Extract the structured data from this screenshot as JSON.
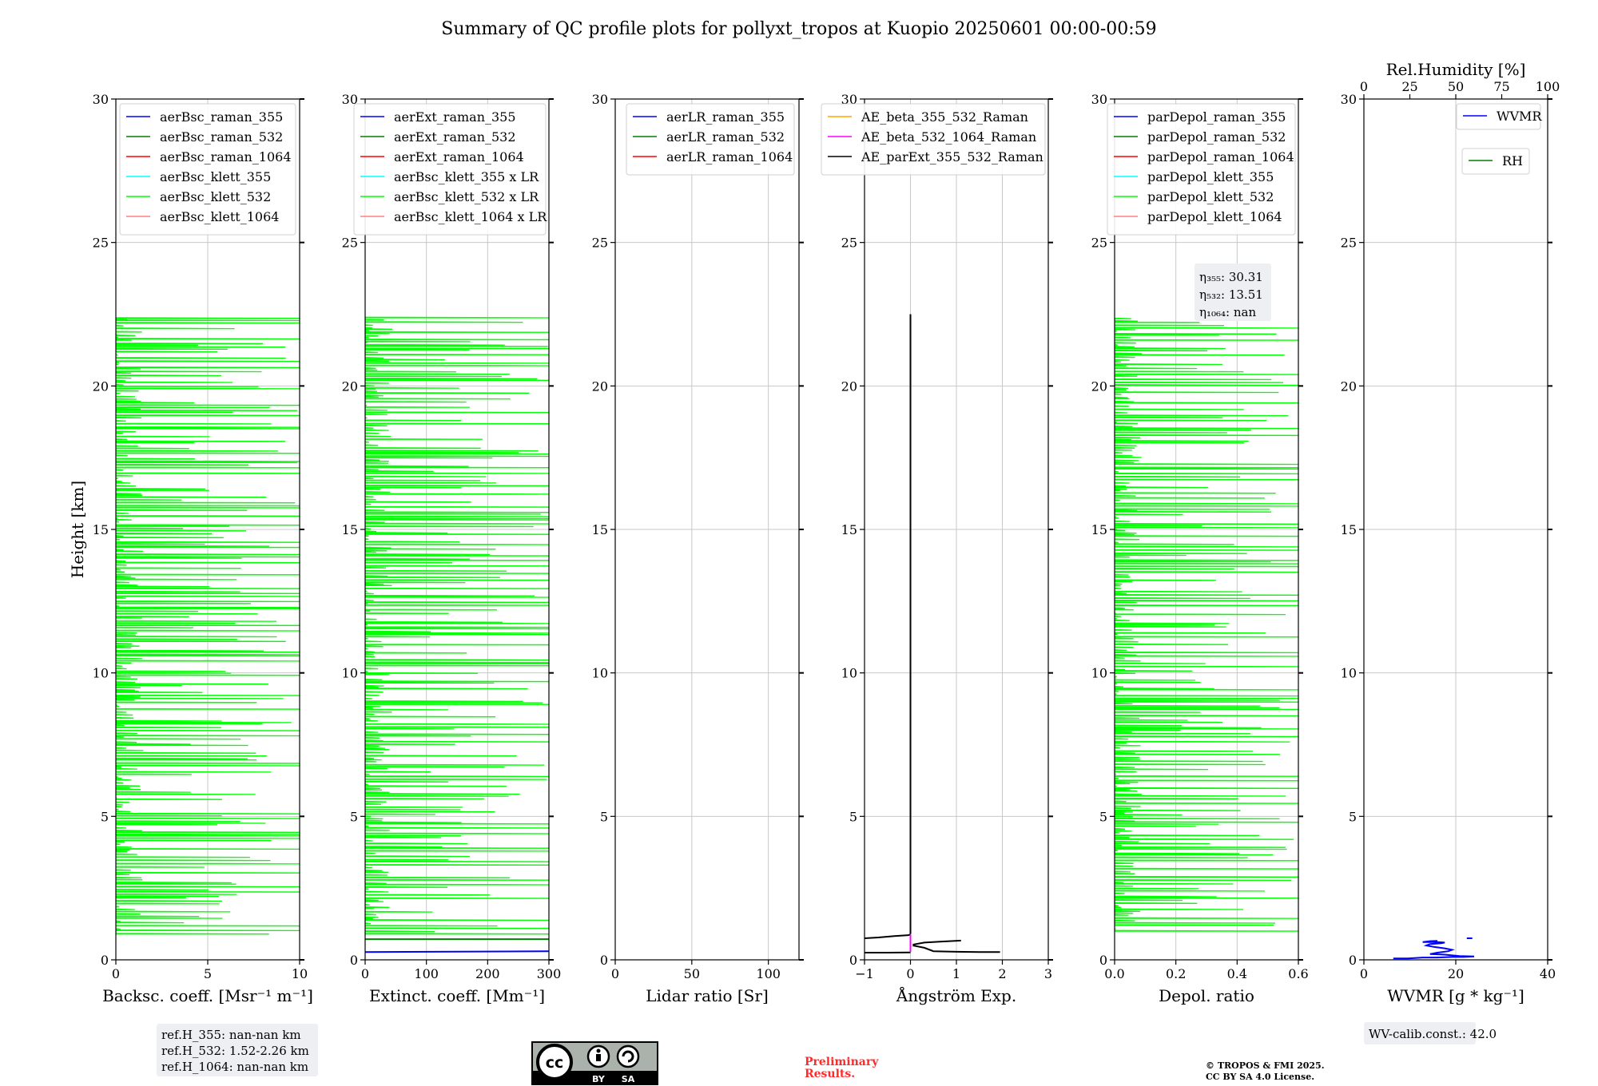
{
  "figure": {
    "title": "Summary of QC profile plots for pollyxt_tropos at Kuopio 20250601 00:00-00:59"
  },
  "footer": {
    "ref_heights": [
      "ref.H_355: nan-nan km",
      "ref.H_532: 1.52-2.26 km",
      "ref.H_1064: nan-nan km"
    ],
    "cc_badge": {
      "icon": "cc-by-sa-badge",
      "by": "BY",
      "sa": "SA"
    },
    "preliminary": [
      "Preliminary",
      "Results."
    ],
    "copyright": [
      "© TROPOS & FMI 2025.",
      "CC BY SA 4.0 License."
    ],
    "wv_calib": "WV-calib.const.: 42.0"
  },
  "colors": {
    "raman_355": "#0000ff",
    "raman_532": "#008000",
    "raman_1064": "#ff0000",
    "klett_355": "#00ffff",
    "klett_532": "#00ff00",
    "klett_1064": "#ff8080",
    "ae_beta_355_532": "#ffa500",
    "ae_beta_532_1064": "#ff00ff",
    "ae_parext": "#000000",
    "wvmr": "#0000ff",
    "rh": "#008000"
  },
  "chart_data": [
    {
      "id": "backscatter",
      "type": "line",
      "xlabel": "Backsc. coeff. [Msr⁻¹ m⁻¹]",
      "ylabel": "Height [km]",
      "xlim": [
        0,
        10
      ],
      "ylim": [
        0,
        30
      ],
      "xticks": [
        "0",
        "5",
        "10"
      ],
      "yticks": [
        "0",
        "5",
        "10",
        "15",
        "20",
        "25",
        "30"
      ],
      "grid": true,
      "legend": {
        "placement": "top-right",
        "entries": [
          "aerBsc_raman_355",
          "aerBsc_raman_532",
          "aerBsc_raman_1064",
          "aerBsc_klett_355",
          "aerBsc_klett_532",
          "aerBsc_klett_1064"
        ]
      },
      "series": [
        {
          "name": "aerBsc_klett_532",
          "color_key": "klett_532",
          "style": "noisy",
          "x_range": [
            0,
            10
          ],
          "y_range": [
            0.9,
            22.4
          ]
        }
      ]
    },
    {
      "id": "extinction",
      "type": "line",
      "xlabel": "Extinct. coeff. [Mm⁻¹]",
      "xlim": [
        0,
        300
      ],
      "ylim": [
        0,
        30
      ],
      "xticks": [
        "0",
        "100",
        "200",
        "300"
      ],
      "yticks": [
        "0",
        "5",
        "10",
        "15",
        "20",
        "25",
        "30"
      ],
      "grid": true,
      "legend": {
        "placement": "top-right",
        "entries": [
          "aerExt_raman_355",
          "aerExt_raman_532",
          "aerExt_raman_1064",
          "aerBsc_klett_355 x LR",
          "aerBsc_klett_532 x LR",
          "aerBsc_klett_1064 x LR"
        ]
      },
      "series": [
        {
          "name": "aerBsc_klett_532 x LR",
          "color_key": "klett_532",
          "style": "noisy",
          "x_range": [
            0,
            300
          ],
          "y_range": [
            0.9,
            22.4
          ]
        },
        {
          "name": "aerExt_raman_532",
          "color_key": "raman_532",
          "style": "line",
          "x": [
            0,
            300
          ],
          "y": [
            0.72,
            0.72
          ]
        },
        {
          "name": "aerExt_raman_355",
          "color_key": "raman_355",
          "style": "line",
          "x": [
            0,
            300
          ],
          "y": [
            0.27,
            0.3
          ]
        }
      ]
    },
    {
      "id": "lidar_ratio",
      "type": "line",
      "xlabel": "Lidar ratio [Sr]",
      "xlim": [
        0,
        120
      ],
      "ylim": [
        0,
        30
      ],
      "xticks": [
        "0",
        "50",
        "100"
      ],
      "yticks": [
        "0",
        "5",
        "10",
        "15",
        "20",
        "25",
        "30"
      ],
      "grid": true,
      "legend": {
        "placement": "top-right",
        "entries": [
          "aerLR_raman_355",
          "aerLR_raman_532",
          "aerLR_raman_1064"
        ]
      },
      "series": []
    },
    {
      "id": "angstrom",
      "type": "line",
      "xlabel": "Ångström Exp.",
      "xlim": [
        -1,
        3
      ],
      "ylim": [
        0,
        30
      ],
      "xticks": [
        "−1",
        "0",
        "1",
        "2",
        "3"
      ],
      "yticks": [
        "0",
        "5",
        "10",
        "15",
        "20",
        "25",
        "30"
      ],
      "grid": true,
      "legend": {
        "placement": "top-right",
        "entries": [
          "AE_beta_355_532_Raman",
          "AE_beta_532_1064_Raman",
          "AE_parExt_355_532_Raman"
        ]
      },
      "series": [
        {
          "name": "AE_parExt_355_532_Raman",
          "color_key": "ae_parext",
          "style": "line",
          "x": [
            0,
            0
          ],
          "y": [
            0.9,
            22.5
          ]
        },
        {
          "name": "AE_parExt_355_532_Raman",
          "color_key": "ae_parext",
          "style": "line",
          "x": [
            -1.0,
            -0.7,
            -0.35,
            -0.05,
            0
          ],
          "y": [
            0.75,
            0.78,
            0.83,
            0.86,
            0.88
          ]
        },
        {
          "name": "AE_parExt_355_532_Raman",
          "color_key": "ae_parext",
          "style": "line",
          "x": [
            -1.0,
            -0.5,
            0
          ],
          "y": [
            0.25,
            0.25,
            0.26
          ]
        },
        {
          "name": "AE_parExt_355_532_Raman",
          "color_key": "ae_parext",
          "style": "line",
          "x": [
            0.05,
            0.3,
            0.6,
            1.1
          ],
          "y": [
            0.53,
            0.6,
            0.63,
            0.67
          ]
        },
        {
          "name": "AE_parExt_355_532_Raman",
          "color_key": "ae_parext",
          "style": "line",
          "x": [
            0.05,
            0.3,
            0.5,
            1.0,
            1.5,
            1.95
          ],
          "y": [
            0.5,
            0.42,
            0.3,
            0.28,
            0.27,
            0.27
          ]
        },
        {
          "name": "AE_beta_532_1064_Raman",
          "color_key": "ae_beta_532_1064",
          "style": "line",
          "x": [
            0,
            0
          ],
          "y": [
            0.28,
            0.88
          ]
        }
      ]
    },
    {
      "id": "depolarization",
      "type": "line",
      "xlabel": "Depol. ratio",
      "xlim": [
        0,
        0.6
      ],
      "ylim": [
        0,
        30
      ],
      "xticks": [
        "0.0",
        "0.2",
        "0.4",
        "0.6"
      ],
      "yticks": [
        "0",
        "5",
        "10",
        "15",
        "20",
        "25",
        "30"
      ],
      "grid": true,
      "legend": {
        "placement": "top-right",
        "entries": [
          "parDepol_raman_355",
          "parDepol_raman_532",
          "parDepol_raman_1064",
          "parDepol_klett_355",
          "parDepol_klett_532",
          "parDepol_klett_1064"
        ]
      },
      "annotations": [
        "η₃₅₅: 30.31",
        "η₅₃₂: 13.51",
        "η₁₀₆₄: nan"
      ],
      "series": [
        {
          "name": "parDepol_klett_532",
          "color_key": "klett_532",
          "style": "noisy",
          "x_range": [
            0,
            0.6
          ],
          "y_range": [
            1.0,
            22.4
          ]
        }
      ]
    },
    {
      "id": "wvmr",
      "type": "line",
      "xlabel": "WVMR [g * kg⁻¹]",
      "xlim": [
        0,
        50
      ],
      "ylim": [
        0,
        30
      ],
      "xticks": [
        "0",
        "20",
        "40"
      ],
      "yticks": [
        "0",
        "5",
        "10",
        "15",
        "20",
        "25",
        "30"
      ],
      "top_axis": {
        "label": "Rel.Humidity [%]",
        "xlim": [
          0,
          100
        ],
        "xticks": [
          "0",
          "25",
          "50",
          "75",
          "100"
        ]
      },
      "grid": true,
      "legend": {
        "placement": "top-right",
        "entries": [
          "WVMR",
          "RH"
        ]
      },
      "series": [
        {
          "name": "WVMR",
          "color_key": "wvmr",
          "style": "line",
          "x": [
            8,
            12,
            16,
            20,
            24,
            27,
            30,
            26,
            22,
            18,
            20,
            23,
            24,
            22,
            19,
            17,
            18,
            21,
            22,
            20,
            16,
            18,
            20
          ],
          "y": [
            0.05,
            0.05,
            0.08,
            0.08,
            0.1,
            0.1,
            0.12,
            0.13,
            0.18,
            0.2,
            0.25,
            0.3,
            0.35,
            0.4,
            0.45,
            0.5,
            0.55,
            0.58,
            0.6,
            0.62,
            0.62,
            0.65,
            0.66
          ]
        },
        {
          "name": "WVMR",
          "color_key": "wvmr",
          "style": "line",
          "x": [
            28,
            29.5
          ],
          "y": [
            0.75,
            0.75
          ]
        }
      ]
    }
  ]
}
